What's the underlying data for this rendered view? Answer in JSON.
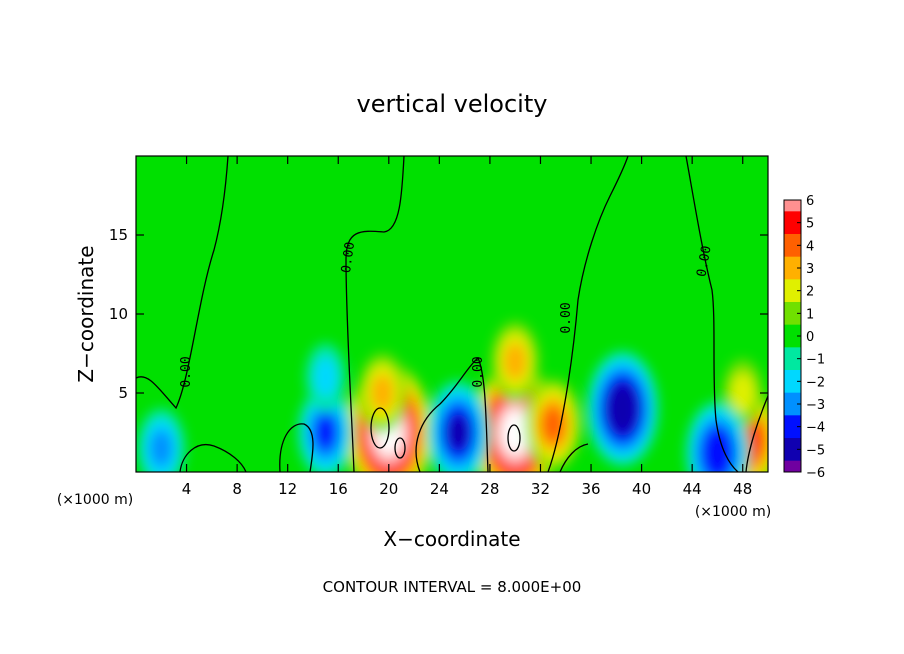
{
  "chart_data": {
    "type": "heatmap",
    "title": "vertical velocity",
    "xlabel": "X−coordinate",
    "ylabel": "Z−coordinate",
    "x_unit_left": "(×1000 m)",
    "x_unit_right": "(×1000 m)",
    "footer": "CONTOUR INTERVAL = 8.000E+00",
    "xlim": [
      0,
      50
    ],
    "ylim": [
      0,
      20
    ],
    "x_ticks": [
      4,
      8,
      12,
      16,
      20,
      24,
      28,
      32,
      36,
      40,
      44,
      48
    ],
    "x_tick_labels": [
      "4",
      "8",
      "12",
      "16",
      "20",
      "24",
      "28",
      "32",
      "36",
      "40",
      "44",
      "48"
    ],
    "y_ticks": [
      5,
      10,
      15
    ],
    "y_tick_labels": [
      "5",
      "10",
      "15"
    ],
    "colorbar": {
      "min": -6,
      "max": 6,
      "tick_values": [
        6,
        5,
        4,
        3,
        2,
        1,
        0,
        -1,
        -2,
        -3,
        -4,
        -5,
        -6
      ],
      "tick_labels": [
        "6",
        "5",
        "4",
        "3",
        "2",
        "1",
        "0",
        "−1",
        "−2",
        "−3",
        "−4",
        "−5",
        "−6"
      ]
    },
    "contour_label": "0.00",
    "features": [
      {
        "x": 20,
        "z": 2.5,
        "value": 8
      },
      {
        "x": 19.5,
        "z": 5,
        "value": 3
      },
      {
        "x": 30,
        "z": 2.5,
        "value": 8
      },
      {
        "x": 30,
        "z": 7,
        "value": 3
      },
      {
        "x": 33,
        "z": 3,
        "value": 4
      },
      {
        "x": 48.5,
        "z": 2,
        "value": 5
      },
      {
        "x": 48,
        "z": 5,
        "value": 2
      },
      {
        "x": 38.5,
        "z": 4,
        "value": -5.5
      },
      {
        "x": 25.5,
        "z": 2.5,
        "value": -5
      },
      {
        "x": 15,
        "z": 2.5,
        "value": -4
      },
      {
        "x": 46,
        "z": 1.2,
        "value": -4.5
      },
      {
        "x": 2,
        "z": 1.5,
        "value": -3
      },
      {
        "x": 15,
        "z": 6,
        "value": -2
      }
    ]
  }
}
